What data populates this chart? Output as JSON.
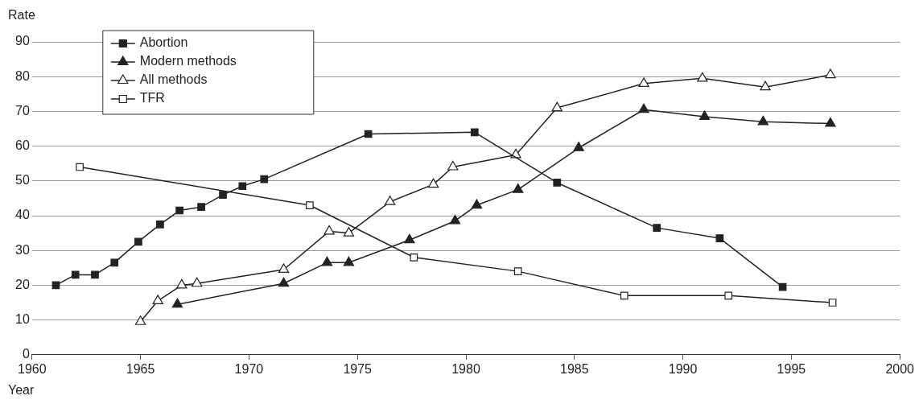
{
  "chart_data": {
    "type": "line",
    "xlabel": "Year",
    "ylabel": "Rate",
    "xlim": [
      1960,
      2000
    ],
    "xticks": [
      1960,
      1965,
      1970,
      1975,
      1980,
      1985,
      1990,
      1995,
      2000
    ],
    "ylim": [
      0,
      90
    ],
    "yticks": [
      0,
      10,
      20,
      30,
      40,
      50,
      60,
      70,
      80,
      90
    ],
    "grid": "y",
    "legend": "top left",
    "line_style": "solid",
    "series": [
      {
        "name": "Abortion",
        "color": "#222222",
        "marker": "square",
        "x": [
          1961.1,
          1962.0,
          1962.9,
          1963.8,
          1964.9,
          1965.9,
          1966.8,
          1967.8,
          1968.8,
          1969.7,
          1970.7,
          1975.5,
          1980.4,
          1984.2,
          1988.8,
          1991.7,
          1994.6
        ],
        "values": [
          20,
          23,
          23,
          26.5,
          32.5,
          37.5,
          41.5,
          42.5,
          46,
          48.5,
          50.5,
          63.5,
          64,
          49.5,
          36.5,
          33.5,
          19.5
        ]
      },
      {
        "name": "Modern methods",
        "color": "#222222",
        "marker": "triangle",
        "x": [
          1966.7,
          1971.6,
          1973.6,
          1974.6,
          1977.4,
          1979.5,
          1980.5,
          1982.4,
          1985.2,
          1988.2,
          1991.0,
          1993.7,
          1996.8
        ],
        "values": [
          14.5,
          20.5,
          26.5,
          26.5,
          33,
          38.5,
          43,
          47.5,
          59.5,
          70.5,
          68.5,
          67,
          66.5
        ]
      },
      {
        "name": "All methods",
        "color": "#222222",
        "marker": "triangle",
        "x": [
          1965.0,
          1965.8,
          1966.9,
          1967.6,
          1971.6,
          1973.7,
          1974.6,
          1976.5,
          1978.5,
          1979.4,
          1982.3,
          1984.2,
          1988.2,
          1990.9,
          1993.8,
          1996.8
        ],
        "values": [
          9.5,
          15.5,
          20,
          20.5,
          24.5,
          35.5,
          35,
          44,
          49,
          54,
          57.5,
          71,
          78,
          79.5,
          77,
          80.5
        ],
        "colors": [
          "#ffffff",
          "#ffffff",
          "#ffffff",
          "#ffffff",
          "#ffffff",
          "#ffffff",
          "#ffffff",
          "#ffffff",
          "#ffffff",
          "#ffffff",
          "#ffffff",
          "#ffffff",
          "#ffffff",
          "#ffffff",
          "#ffffff",
          "#ffffff"
        ]
      },
      {
        "name": "TFR",
        "color": "#222222",
        "marker": "square",
        "x": [
          1962.2,
          1972.8,
          1977.6,
          1982.4,
          1987.3,
          1992.1,
          1996.9
        ],
        "values": [
          54,
          43,
          28,
          24,
          17,
          17,
          15
        ],
        "colors": [
          "#ffffff",
          "#ffffff",
          "#ffffff",
          "#ffffff",
          "#ffffff",
          "#ffffff",
          "#ffffff"
        ]
      }
    ]
  }
}
